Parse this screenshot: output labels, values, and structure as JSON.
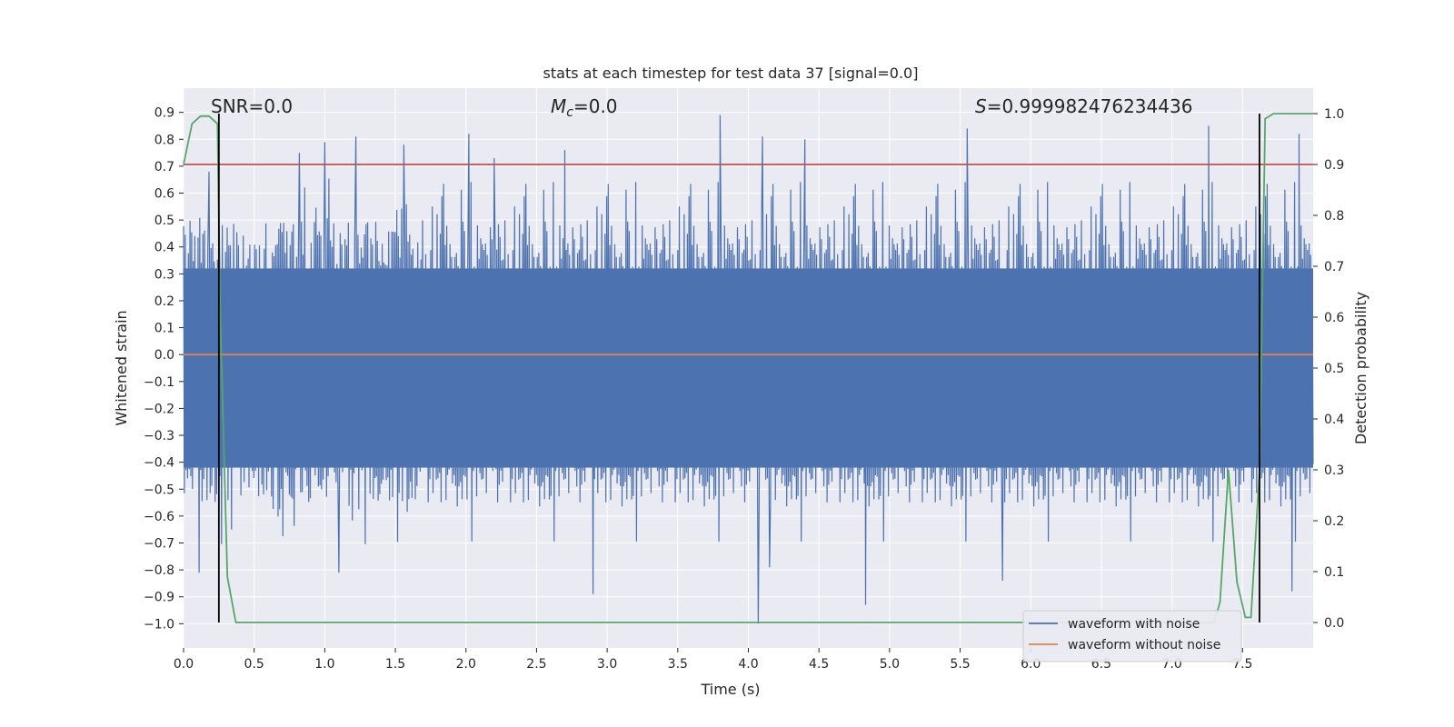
{
  "chart_data": {
    "type": "line",
    "title": "stats at each timestep for test data 37 [signal=0.0]",
    "xlabel": "Time (s)",
    "ylabel": "Whitened strain",
    "y2label": "Detection probability",
    "xlim": [
      0.0,
      8.0
    ],
    "ylim": [
      -1.09,
      0.99
    ],
    "y2lim": [
      -0.05,
      1.05
    ],
    "xticks": [
      "0.0",
      "0.5",
      "1.0",
      "1.5",
      "2.0",
      "2.5",
      "3.0",
      "3.5",
      "4.0",
      "4.5",
      "5.0",
      "5.5",
      "6.0",
      "6.5",
      "7.0",
      "7.5"
    ],
    "yticks": [
      "-1.0",
      "-0.9",
      "-0.8",
      "-0.7",
      "-0.6",
      "-0.5",
      "-0.4",
      "-0.3",
      "-0.2",
      "-0.1",
      "0.0",
      "0.1",
      "0.2",
      "0.3",
      "0.4",
      "0.5",
      "0.6",
      "0.7",
      "0.8",
      "0.9"
    ],
    "y2ticks": [
      "0.0",
      "0.1",
      "0.2",
      "0.3",
      "0.4",
      "0.5",
      "0.6",
      "0.7",
      "0.8",
      "0.9",
      "1.0"
    ],
    "grid": true,
    "legend_position": "bottom-right",
    "annotations": {
      "snr": "SNR=0.0",
      "mc_symbol": "M",
      "mc_sub": "c",
      "mc_value": "=0.0",
      "s_symbol": "S",
      "s_value": "=0.999982476234436"
    },
    "series": [
      {
        "name": "waveform with noise",
        "color": "#4c72b0",
        "description_values": {
          "t_range": [
            0.0,
            8.0
          ],
          "peaks_high": [
            [
              0.18,
              0.68
            ],
            [
              0.82,
              0.75
            ],
            [
              1.0,
              0.79
            ],
            [
              1.22,
              0.81
            ],
            [
              1.56,
              0.78
            ],
            [
              2.02,
              0.82
            ],
            [
              2.2,
              0.73
            ],
            [
              2.7,
              0.76
            ],
            [
              3.8,
              0.89
            ],
            [
              4.1,
              0.81
            ],
            [
              4.4,
              0.8
            ],
            [
              5.55,
              0.84
            ],
            [
              7.26,
              0.85
            ],
            [
              7.9,
              0.82
            ]
          ],
          "peaks_low": [
            [
              0.11,
              -0.81
            ],
            [
              0.34,
              -0.65
            ],
            [
              1.1,
              -0.81
            ],
            [
              2.9,
              -0.89
            ],
            [
              4.07,
              -1.0
            ],
            [
              4.15,
              -0.79
            ],
            [
              4.83,
              -0.93
            ],
            [
              5.8,
              -0.84
            ],
            [
              7.85,
              -0.88
            ]
          ]
        }
      },
      {
        "name": "waveform without noise",
        "color": "#dd8452",
        "value": 0.0
      },
      {
        "name": "",
        "axis": "y2",
        "color": "#55a868",
        "x": [
          0.0,
          0.06,
          0.12,
          0.18,
          0.24,
          0.26,
          0.31,
          0.37,
          7.3,
          7.34,
          7.4,
          7.46,
          7.52,
          7.56,
          7.62,
          7.66,
          7.72,
          8.0
        ],
        "y": [
          0.9,
          0.98,
          0.995,
          0.995,
          0.98,
          0.6,
          0.09,
          0.0,
          0.0,
          0.04,
          0.3,
          0.08,
          0.01,
          0.01,
          0.3,
          0.99,
          1.0,
          1.0
        ]
      }
    ],
    "threshold_line": {
      "color": "#c44e52",
      "y2": 0.9
    },
    "vertical_lines": {
      "color": "#000000",
      "x": [
        0.25,
        7.62
      ]
    }
  }
}
